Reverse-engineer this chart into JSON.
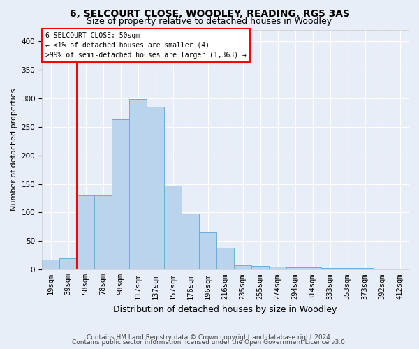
{
  "title": "6, SELCOURT CLOSE, WOODLEY, READING, RG5 3AS",
  "subtitle": "Size of property relative to detached houses in Woodley",
  "xlabel": "Distribution of detached houses by size in Woodley",
  "ylabel": "Number of detached properties",
  "footer1": "Contains HM Land Registry data © Crown copyright and database right 2024.",
  "footer2": "Contains public sector information licensed under the Open Government Licence v3.0.",
  "annotation_line1": "6 SELCOURT CLOSE: 50sqm",
  "annotation_line2": "← <1% of detached houses are smaller (4)",
  "annotation_line3": ">99% of semi-detached houses are larger (1,363) →",
  "bar_labels": [
    "19sqm",
    "39sqm",
    "58sqm",
    "78sqm",
    "98sqm",
    "117sqm",
    "137sqm",
    "157sqm",
    "176sqm",
    "196sqm",
    "216sqm",
    "235sqm",
    "255sqm",
    "274sqm",
    "294sqm",
    "314sqm",
    "333sqm",
    "353sqm",
    "373sqm",
    "392sqm",
    "412sqm"
  ],
  "bar_values": [
    18,
    20,
    130,
    130,
    263,
    298,
    285,
    147,
    98,
    65,
    38,
    8,
    6,
    5,
    4,
    4,
    3,
    3,
    3,
    1,
    1
  ],
  "bar_color": "#bad4ed",
  "bar_edge_color": "#6baed6",
  "red_line_index": 1.5,
  "ylim": [
    0,
    420
  ],
  "yticks": [
    0,
    50,
    100,
    150,
    200,
    250,
    300,
    350,
    400
  ],
  "bg_color": "#e8eef8",
  "grid_color": "#ffffff",
  "title_fontsize": 10,
  "subtitle_fontsize": 9,
  "tick_fontsize": 7.5,
  "ylabel_fontsize": 8,
  "xlabel_fontsize": 9
}
